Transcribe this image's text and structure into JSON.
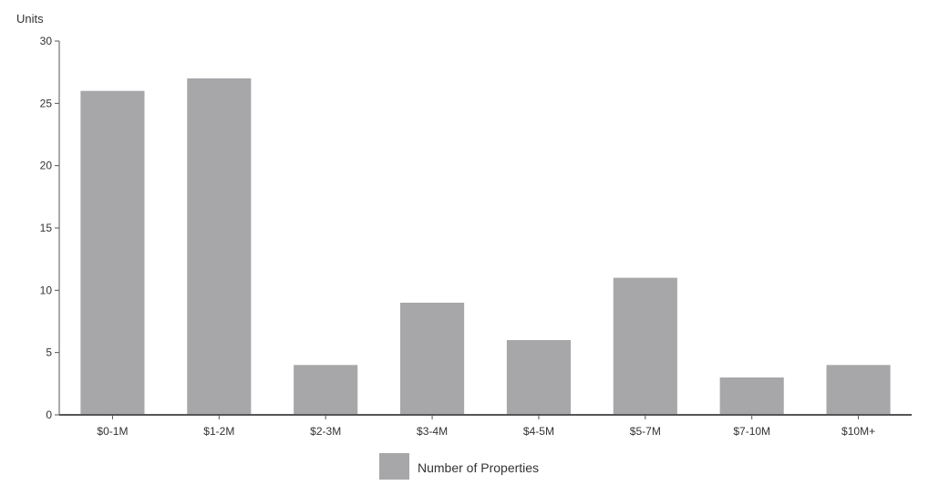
{
  "chart_data": {
    "type": "bar",
    "ylabel": "Units",
    "xlabel": "",
    "title": "",
    "categories": [
      "$0-1M",
      "$1-2M",
      "$2-3M",
      "$3-4M",
      "$4-5M",
      "$5-7M",
      "$7-10M",
      "$10M+"
    ],
    "series": [
      {
        "name": "Number of Properties",
        "values": [
          26,
          27,
          4,
          9,
          6,
          11,
          3,
          4
        ]
      }
    ],
    "ylim": [
      0,
      30
    ],
    "yticks": [
      0,
      5,
      10,
      15,
      20,
      25,
      30
    ],
    "grid": false,
    "legend": "bottom-center",
    "colors": {
      "bar": "#a7a7aa",
      "axis": "#555555",
      "text": "#333333"
    }
  }
}
